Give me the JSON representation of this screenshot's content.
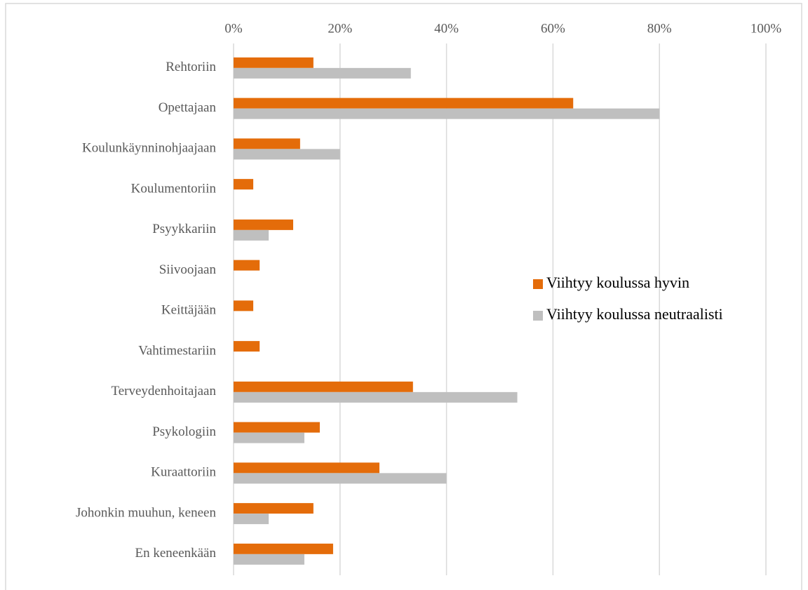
{
  "chart_data": {
    "type": "hbar",
    "categories": [
      "Rehtoriin",
      "Opettajaan",
      "Koulunkäynninohjaajaan",
      "Koulumentoriin",
      "Psyykkariin",
      "Siivoojaan",
      "Keittäjään",
      "Vahtimestariin",
      "Terveydenhoitajaan",
      "Psykologiin",
      "Kuraattoriin",
      "Johonkin muuhun, keneen",
      "En keneenkään"
    ],
    "series": [
      {
        "name": "Viihtyy koulussa hyvin",
        "color": "#e46c0a",
        "values": [
          15,
          63.8,
          12.5,
          3.7,
          11.2,
          4.9,
          3.7,
          4.9,
          33.7,
          16.2,
          27.4,
          15,
          18.7
        ]
      },
      {
        "name": "Viihtyy koulussa neutraalisti",
        "color": "#bfbfbf",
        "values": [
          33.3,
          80,
          20,
          0,
          6.6,
          0,
          0,
          0,
          53.3,
          13.3,
          40,
          6.6,
          13.3
        ]
      }
    ],
    "xlim": [
      0,
      100
    ],
    "xticks": [
      {
        "value": 0,
        "label": "0%"
      },
      {
        "value": 20,
        "label": "20%"
      },
      {
        "value": 40,
        "label": "40%"
      },
      {
        "value": 60,
        "label": "60%"
      },
      {
        "value": 80,
        "label": "80%"
      },
      {
        "value": 100,
        "label": "100%"
      }
    ],
    "grid": true,
    "legend": "right"
  }
}
